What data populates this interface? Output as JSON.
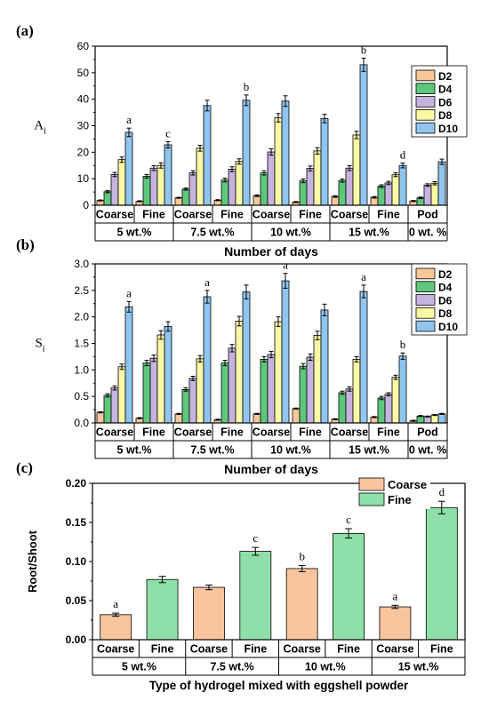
{
  "chart_data": [
    {
      "panel": "(a)",
      "type": "bar",
      "ylabel": "A",
      "ylabel_sub": "i",
      "xlabel": "Number of days",
      "ylim": [
        0,
        60
      ],
      "yticks": [
        "0",
        "10",
        "20",
        "30",
        "40",
        "50",
        "60"
      ],
      "categories": [
        "Coarse",
        "Fine",
        "Coarse",
        "Fine",
        "Coarse",
        "Fine",
        "Coarse",
        "Fine",
        "Pod"
      ],
      "groups": [
        "5 wt.%",
        "7.5 wt.%",
        "10 wt.%",
        "15 wt.%",
        "0 wt. %"
      ],
      "series": [
        {
          "name": "D2",
          "color": "#f8c79a",
          "values": [
            1.8,
            1.5,
            2.8,
            1.9,
            3.6,
            1.2,
            3.3,
            3.0,
            1.6
          ]
        },
        {
          "name": "D4",
          "color": "#5fc77c",
          "values": [
            5.1,
            10.9,
            6.1,
            9.5,
            12.2,
            9.2,
            9.3,
            7.2,
            2.8
          ]
        },
        {
          "name": "D6",
          "color": "#c6b4de",
          "values": [
            11.6,
            14.0,
            12.2,
            13.6,
            20.1,
            13.9,
            14.0,
            8.4,
            7.6
          ]
        },
        {
          "name": "D8",
          "color": "#fbf8a6",
          "values": [
            17.2,
            15.0,
            21.5,
            16.5,
            33.0,
            20.5,
            26.5,
            11.5,
            8.3
          ]
        },
        {
          "name": "D10",
          "color": "#8fc5ef",
          "values": [
            27.5,
            22.8,
            37.6,
            39.6,
            39.3,
            32.7,
            53.0,
            15.0,
            16.4
          ]
        }
      ],
      "errors": [
        [
          0.2,
          0.2,
          0.2,
          0.2,
          0.3,
          0.2,
          0.3,
          0.3,
          0.2
        ],
        [
          0.4,
          0.7,
          0.4,
          0.7,
          0.8,
          0.7,
          0.6,
          0.5,
          0.3
        ],
        [
          0.8,
          0.9,
          0.8,
          0.9,
          1.2,
          0.9,
          0.9,
          0.6,
          0.5
        ],
        [
          1.0,
          1.0,
          1.1,
          1.0,
          1.6,
          1.2,
          1.4,
          0.7,
          0.6
        ],
        [
          1.6,
          1.2,
          2.0,
          2.0,
          2.0,
          1.6,
          2.5,
          0.9,
          1.0
        ]
      ],
      "annotations": [
        {
          "text": "a",
          "cat": 0,
          "series": 4
        },
        {
          "text": "c",
          "cat": 1,
          "series": 4
        },
        {
          "text": "b",
          "cat": 3,
          "series": 4
        },
        {
          "text": "b",
          "cat": 6,
          "series": 4
        },
        {
          "text": "d",
          "cat": 7,
          "series": 4
        }
      ],
      "legend": "top-right"
    },
    {
      "panel": "(b)",
      "type": "bar",
      "ylabel": "S",
      "ylabel_sub": "i",
      "xlabel": "Number of days",
      "ylim": [
        0,
        3.0
      ],
      "yticks": [
        "0.0",
        "0.5",
        "1.0",
        "1.5",
        "2.0",
        "2.5",
        "3.0"
      ],
      "categories": [
        "Coarse",
        "Fine",
        "Coarse",
        "Fine",
        "Coarse",
        "Fine",
        "Coarse",
        "Fine",
        "Pod"
      ],
      "groups": [
        "5 wt.%",
        "7.5 wt.%",
        "10 wt.%",
        "15 wt.%",
        "0 wt. %"
      ],
      "series": [
        {
          "name": "D2",
          "color": "#f8c79a",
          "values": [
            0.2,
            0.09,
            0.17,
            0.06,
            0.17,
            0.27,
            0.07,
            0.11,
            0.04
          ]
        },
        {
          "name": "D4",
          "color": "#5fc77c",
          "values": [
            0.52,
            1.13,
            0.63,
            1.13,
            1.2,
            1.07,
            0.57,
            0.47,
            0.13
          ]
        },
        {
          "name": "D6",
          "color": "#c6b4de",
          "values": [
            0.66,
            1.22,
            0.84,
            1.41,
            1.29,
            1.24,
            0.64,
            0.54,
            0.12
          ]
        },
        {
          "name": "D8",
          "color": "#fbf8a6",
          "values": [
            1.06,
            1.66,
            1.21,
            1.92,
            1.91,
            1.65,
            1.2,
            0.86,
            0.15
          ]
        },
        {
          "name": "D10",
          "color": "#8fc5ef",
          "values": [
            2.19,
            1.82,
            2.38,
            2.47,
            2.68,
            2.13,
            2.48,
            1.26,
            0.17
          ]
        }
      ],
      "errors": [
        [
          0.01,
          0.01,
          0.01,
          0.01,
          0.01,
          0.01,
          0.01,
          0.01,
          0.01
        ],
        [
          0.03,
          0.05,
          0.03,
          0.05,
          0.05,
          0.05,
          0.03,
          0.03,
          0.01
        ],
        [
          0.04,
          0.06,
          0.04,
          0.07,
          0.06,
          0.06,
          0.04,
          0.03,
          0.01
        ],
        [
          0.05,
          0.08,
          0.06,
          0.09,
          0.09,
          0.08,
          0.05,
          0.04,
          0.01
        ],
        [
          0.1,
          0.09,
          0.12,
          0.13,
          0.14,
          0.11,
          0.12,
          0.06,
          0.01
        ]
      ],
      "annotations": [
        {
          "text": "a",
          "cat": 0,
          "series": 4
        },
        {
          "text": "a",
          "cat": 2,
          "series": 4
        },
        {
          "text": "a",
          "cat": 4,
          "series": 4
        },
        {
          "text": "a",
          "cat": 6,
          "series": 4
        },
        {
          "text": "b",
          "cat": 7,
          "series": 4
        }
      ],
      "legend": "top-right"
    },
    {
      "panel": "(c)",
      "type": "bar",
      "ylabel": "Root/Shoot",
      "xlabel": "Type of hydrogel mixed with eggshell powder",
      "ylim": [
        0,
        0.2
      ],
      "yticks": [
        "0.00",
        "0.05",
        "0.10",
        "0.15",
        "0.20"
      ],
      "categories": [
        "Coarse",
        "Fine",
        "Coarse",
        "Fine",
        "Coarse",
        "Fine",
        "Coarse",
        "Fine"
      ],
      "groups": [
        "5 wt.%",
        "7.5 wt.%",
        "10 wt.%",
        "15 wt.%"
      ],
      "values": [
        0.032,
        0.077,
        0.067,
        0.113,
        0.091,
        0.136,
        0.042,
        0.169
      ],
      "errors": [
        0.002,
        0.004,
        0.003,
        0.005,
        0.004,
        0.006,
        0.002,
        0.008
      ],
      "series": [
        {
          "name": "Coarse",
          "color": "#f8c59f"
        },
        {
          "name": "Fine",
          "color": "#8ee0a8"
        }
      ],
      "annotations": [
        {
          "text": "a",
          "cat": 0
        },
        {
          "text": "c",
          "cat": 3
        },
        {
          "text": "b",
          "cat": 4
        },
        {
          "text": "c",
          "cat": 5
        },
        {
          "text": "a",
          "cat": 6
        },
        {
          "text": "d",
          "cat": 7
        }
      ],
      "legend": "top-center"
    }
  ]
}
